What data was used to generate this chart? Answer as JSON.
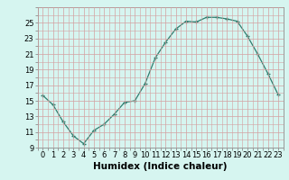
{
  "x": [
    0,
    1,
    2,
    3,
    4,
    5,
    6,
    7,
    8,
    9,
    10,
    11,
    12,
    13,
    14,
    15,
    16,
    17,
    18,
    19,
    20,
    21,
    22,
    23
  ],
  "y": [
    15.7,
    14.5,
    12.3,
    10.5,
    9.5,
    11.2,
    12.0,
    13.3,
    14.8,
    15.0,
    17.2,
    20.5,
    22.5,
    24.2,
    25.2,
    25.1,
    25.7,
    25.7,
    25.5,
    25.2,
    23.3,
    21.0,
    18.5,
    15.8
  ],
  "xlabel": "Humidex (Indice chaleur)",
  "ylim": [
    9,
    27
  ],
  "xlim": [
    -0.5,
    23.5
  ],
  "yticks": [
    9,
    11,
    13,
    15,
    17,
    19,
    21,
    23,
    25
  ],
  "xticks": [
    0,
    1,
    2,
    3,
    4,
    5,
    6,
    7,
    8,
    9,
    10,
    11,
    12,
    13,
    14,
    15,
    16,
    17,
    18,
    19,
    20,
    21,
    22,
    23
  ],
  "line_color": "#2e7d6e",
  "marker": "+",
  "bg_color": "#d6f5f0",
  "grid_color": "#c8e8e0",
  "spine_color": "#999999",
  "tick_font_size": 6.0,
  "label_fontsize": 7.5
}
